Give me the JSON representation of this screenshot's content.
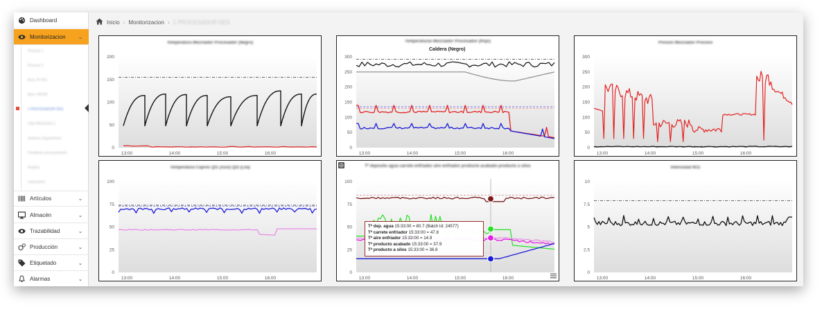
{
  "sidebar": {
    "dashboard": "Dashboard",
    "monitorizacion": "Monitorizacion",
    "sub_items": [
      "Proceso 1",
      "Proceso 2",
      "Best. IP-P01",
      "Best. HEP05",
      "1 PROCESADOR DES",
      "CIRI PROCESS 2",
      "Ordenes Seguimiento",
      "Pendiente procesamiento",
      "Analisis",
      "Laboratorio"
    ],
    "articulos": "Artículos",
    "almacen": "Almacén",
    "trazabilidad": "Trazabilidad",
    "produccion": "Producción",
    "etiquetado": "Etiquetado",
    "alarmas": "Alarmas"
  },
  "breadcrumb": {
    "home": "Inicio",
    "section": "Monitorizacion",
    "current": "1 PROCESADOR DES"
  },
  "charts": {
    "c1": {
      "title": "Temperatura Mezclador Procesador (Negro)"
    },
    "c2": {
      "title": "Temperaturas Mezclador Procesador (Rojo)",
      "legend": "Caldera (Negro)"
    },
    "c3": {
      "title": "Presion Mezclador Proceso"
    },
    "c4": {
      "title": "Temperatura Caprex Qt1 (Azul) Qt2 (Lila)"
    },
    "c5": {
      "title": "Tª deposito agua carrete enfriador aire enfriador producto acabado producto a silos"
    },
    "c6": {
      "title": "Intensidad M11"
    }
  },
  "tooltip": {
    "lines": [
      {
        "label": "Tª dep. agua",
        "value": "15:33:00 = 80.7 (Batch Id: 24577)"
      },
      {
        "label": "Tª carrete enfriador",
        "value": "15:33:00 = 47.8"
      },
      {
        "label": "Tª aire enfriador",
        "value": "15:33:00 = 14.9"
      },
      {
        "label": "Tª producto acabado",
        "value": "15:33:00 = 37.9"
      },
      {
        "label": "Tª producto a silos",
        "value": "15:33:00 = 36.8"
      }
    ]
  },
  "x_ticks": [
    "13:00",
    "14:00",
    "15:00",
    "16:00"
  ],
  "y_ticks": {
    "c1": [
      "0",
      "50",
      "100",
      "150",
      "200"
    ],
    "c2": [
      "0",
      "50",
      "100",
      "150",
      "200",
      "250",
      "300"
    ],
    "c3": [
      "0",
      "50",
      "100",
      "150",
      "200",
      "250",
      "300"
    ],
    "c4": [
      "0",
      "25",
      "50",
      "75",
      "100"
    ],
    "c5": [
      "0",
      "25",
      "50",
      "75",
      "100"
    ],
    "c6": [
      "0",
      "2.5",
      "5",
      "7.5",
      "10"
    ]
  },
  "colors": {
    "accent": "#f6a21e",
    "black": "#111111",
    "red": "#e32222",
    "blue": "#1a1ad8",
    "violet": "#e98be9",
    "green": "#22e022",
    "maroon": "#7a1a1a",
    "magenta": "#e21ee2",
    "gray": "#8a8a8a"
  },
  "icons": {
    "home": "home-icon",
    "menu": "hamburger-icon",
    "gear": "gear-icon"
  }
}
